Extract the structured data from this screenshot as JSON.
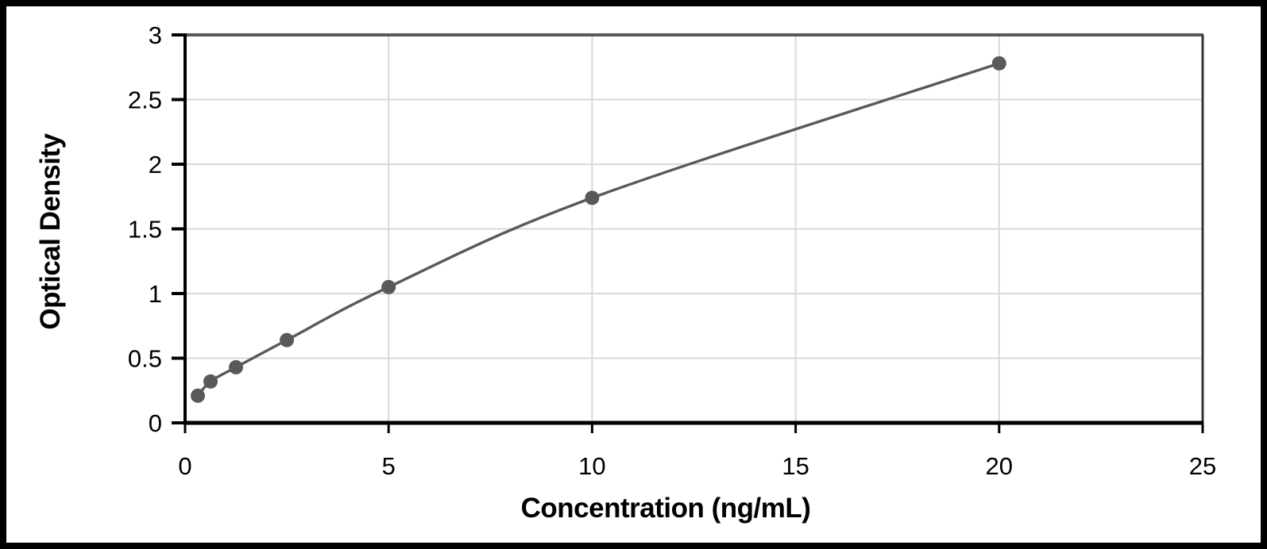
{
  "chart_data": {
    "type": "scatter",
    "subtype": "smooth-line-with-markers",
    "title": "",
    "xlabel": "Concentration (ng/mL)",
    "ylabel": "Optical Density",
    "x": [
      0.313,
      0.625,
      1.25,
      2.5,
      5,
      10,
      20
    ],
    "y": [
      0.21,
      0.32,
      0.43,
      0.64,
      1.05,
      1.74,
      2.78
    ],
    "xlim": [
      0,
      25
    ],
    "ylim": [
      0,
      3
    ],
    "x_ticks": [
      0,
      5,
      10,
      15,
      20,
      25
    ],
    "x_tick_labels": [
      "0",
      "5",
      "10",
      "15",
      "20",
      "25"
    ],
    "y_ticks": [
      0,
      0.5,
      1,
      1.5,
      2,
      2.5,
      3
    ],
    "y_tick_labels": [
      "0",
      "0.5",
      "1",
      "1.5",
      "2",
      "2.5",
      "3"
    ],
    "grid": true,
    "legend": false,
    "colors": {
      "line": "#595959",
      "marker": "#595959",
      "gridline": "#d9d9d9",
      "axis": "#000000",
      "plot_top_border": "#595959",
      "plot_right_border": "#333333",
      "tick_label": "#000000",
      "frame": "#000000",
      "background": "#ffffff"
    }
  }
}
